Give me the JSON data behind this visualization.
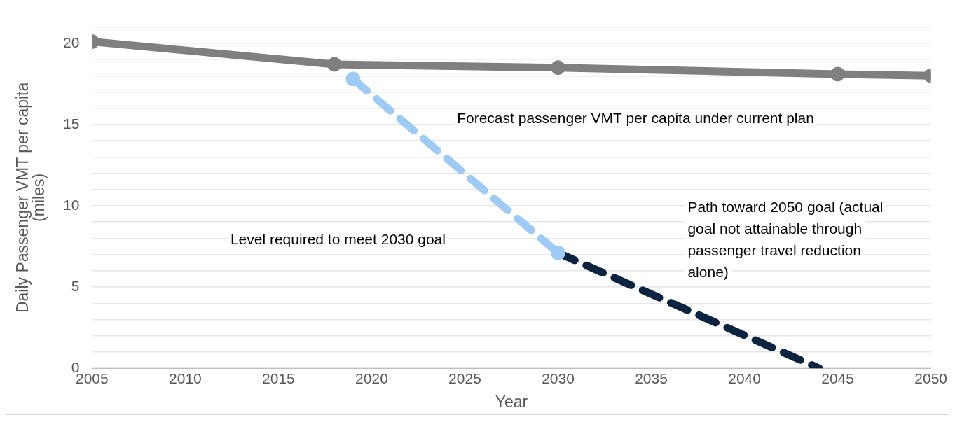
{
  "chart_data": {
    "type": "line",
    "xlabel": "Year",
    "ylabel": "Daily Passenger VMT per capita (miles)",
    "xlim": [
      2005,
      2050
    ],
    "xticks": [
      2005,
      2010,
      2015,
      2020,
      2025,
      2030,
      2035,
      2040,
      2045,
      2050
    ],
    "ylim": [
      0,
      21
    ],
    "yticks": [
      0,
      {
        "value": 1,
        "label": null
      },
      {
        "value": 2,
        "label": null
      },
      {
        "value": 3,
        "label": null
      },
      {
        "value": 4,
        "label": null
      },
      5,
      {
        "value": 6,
        "label": null
      },
      {
        "value": 7,
        "label": null
      },
      {
        "value": 8,
        "label": null
      },
      {
        "value": 9,
        "label": null
      },
      10,
      {
        "value": 11,
        "label": null
      },
      {
        "value": 12,
        "label": null
      },
      {
        "value": 13,
        "label": null
      },
      {
        "value": 14,
        "label": null
      },
      15,
      {
        "value": 16,
        "label": null
      },
      {
        "value": 17,
        "label": null
      },
      {
        "value": 18,
        "label": null
      },
      {
        "value": 19,
        "label": null
      },
      20,
      {
        "value": 21,
        "label": null
      }
    ],
    "grid": "y",
    "legend": false,
    "series": [
      {
        "color": "#7f7f7f",
        "x": [
          2005,
          2018,
          2030,
          2045,
          2050
        ],
        "values": [
          20.1,
          18.7,
          18.5,
          18.1,
          18.0
        ],
        "marker": "circle",
        "line_style": "solid"
      },
      {
        "color": "#9dcbf5",
        "x": [
          2019,
          2030
        ],
        "values": [
          17.8,
          7.1
        ],
        "marker": "circle",
        "line_style": "dashed"
      },
      {
        "color": "#0b2341",
        "x": [
          2030,
          2044
        ],
        "values": [
          7.1,
          0
        ],
        "marker": "none",
        "line_style": "dashed"
      }
    ],
    "annotations": [
      "Forecast passenger VMT per capita under current plan",
      "Level required to meet 2030 goal",
      "Path toward 2050 goal (actual goal not attainable through passenger travel reduction alone)"
    ]
  }
}
